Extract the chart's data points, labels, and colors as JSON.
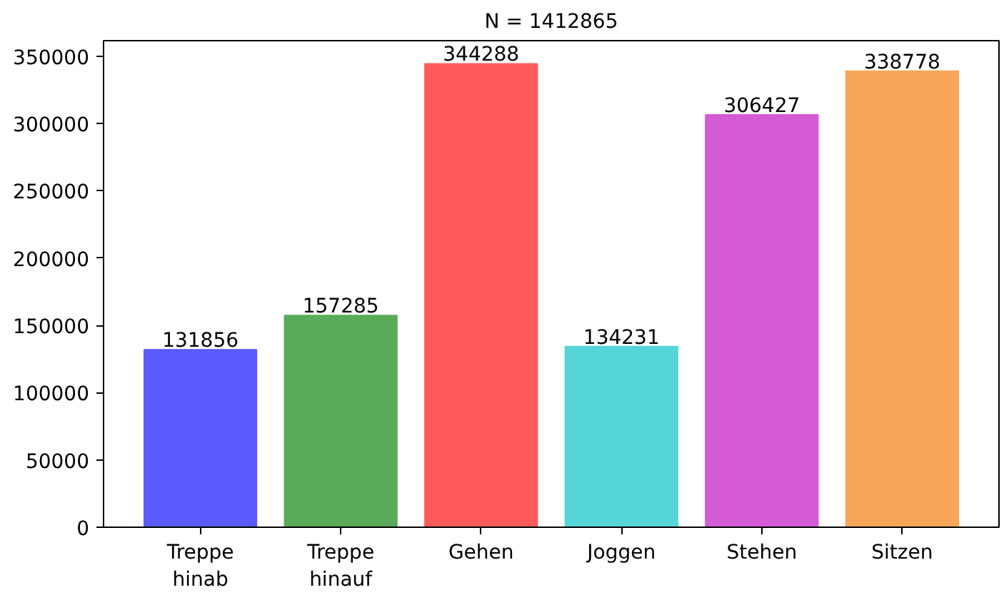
{
  "chart_data": {
    "type": "bar",
    "title": "N = 1412865",
    "categories": [
      "Treppe\nhinab",
      "Treppe\nhinauf",
      "Gehen",
      "Joggen",
      "Stehen",
      "Sitzen"
    ],
    "values": [
      131856,
      157285,
      344288,
      134231,
      306427,
      338778
    ],
    "colors": [
      "#5a5aff",
      "#5aaa5a",
      "#ff5a5a",
      "#55d5d5",
      "#d55ad5",
      "#f9a55a"
    ],
    "ylim": [
      0,
      361500
    ],
    "yticks": [
      0,
      50000,
      100000,
      150000,
      200000,
      250000,
      300000,
      350000
    ],
    "data_labels": true,
    "grid": false
  }
}
